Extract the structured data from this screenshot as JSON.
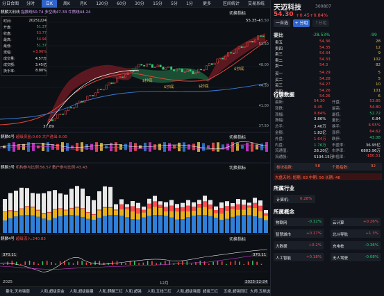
{
  "toolbar": {
    "items": [
      "分日合图",
      "分时",
      "日K",
      "周K",
      "月K",
      "120分",
      "60分",
      "30分",
      "15分",
      "5分",
      "1分",
      "更多",
      "区间统计",
      "交易系统"
    ],
    "active": 2
  },
  "chart1": {
    "legend_name": "麒麟大利线",
    "legend_rest": "指数线50.74 多空线47.33 牛熊线44.24",
    "switch": "切换指标",
    "y_labels": [
      "55.50",
      "51.50",
      "48.00",
      "44.50",
      "41.00",
      "37.50"
    ],
    "top_price": "55.35→",
    "low_price": "37.89",
    "marks": [
      "$抄底",
      "$抄底",
      "$抄底",
      "$抄底"
    ],
    "small_marks": [
      "$抄底",
      "$抄底"
    ]
  },
  "info": {
    "rows": [
      [
        "时间:",
        "20251224"
      ],
      [
        "开盘:",
        "51.37"
      ],
      [
        "收盘:",
        "53.77"
      ],
      [
        "最高:",
        "54.94"
      ],
      [
        "最低:",
        "51.37"
      ],
      [
        "涨幅:",
        "+3.96%"
      ],
      [
        "成交量:",
        "4.57万"
      ],
      [
        "成交额:",
        "3.45亿"
      ],
      [
        "换手率:",
        "8.80%"
      ]
    ]
  },
  "chart2": {
    "name": "麒麟6号",
    "legend": "超级资金:0.00 大户进出:0.00",
    "switch": "切换指标"
  },
  "chart3": {
    "name": "麒麟3号",
    "legend": "机构参与比例:56.57 散户参与比例:43.43",
    "switch": "切换指标"
  },
  "chart4": {
    "name": "麒麟4号",
    "legend": "超级流入:240.83",
    "switch": "切换指标",
    "left_val": "370.11",
    "right_val": "370.11"
  },
  "xaxis": {
    "start": "2025",
    "mid": "12月",
    "end": "2025-12-24"
  },
  "bottom_tabs": [
    "量化,天地强弱",
    "人和,超级资金",
    "人和,超级能量",
    "人和,麒麟三红",
    "人和,超强",
    "人和,五线三红",
    "人和,超级强弱",
    "超级三红",
    "五绝,超强同红",
    "大师,五绝选股"
  ],
  "stock": {
    "name": "天迈科技",
    "code": "300807",
    "price": "54.30",
    "change": "+0.45",
    "pct": "+0.84%",
    "btn_auto": "一自选",
    "btn_group": "+ 分组",
    "btn_third": "↑分组"
  },
  "orderbook": {
    "title": "委比",
    "ratio": "-28.53%",
    "diff": "-99",
    "asks": [
      [
        "卖五",
        "54.36",
        "28"
      ],
      [
        "卖四",
        "54.35",
        "12"
      ],
      [
        "卖三",
        "54.34",
        "9"
      ],
      [
        "卖二",
        "54.33",
        "102"
      ],
      [
        "卖一",
        "54.3",
        "82"
      ]
    ],
    "bids": [
      [
        "买一",
        "54.29",
        "5"
      ],
      [
        "买二",
        "54.28",
        "5"
      ],
      [
        "买三",
        "54.27",
        "10"
      ],
      [
        "买四",
        "54.26",
        "101"
      ],
      [
        "买五",
        "54.26",
        "6"
      ]
    ]
  },
  "quotes": {
    "title": "行情数据",
    "rows": [
      [
        "最新:",
        "54.30",
        "开盘:",
        "53.85"
      ],
      [
        "涨跌:",
        "0.45",
        "最高:",
        "54.80"
      ],
      [
        "涨幅:",
        "0.84%",
        "最低:",
        "52.72"
      ],
      [
        "振幅:",
        "3.86%",
        "量比:",
        "0.84"
      ],
      [
        "总手:",
        "3.40万",
        "换手:",
        "6.55%"
      ],
      [
        "金额:",
        "1.82亿",
        "涨停:",
        "64.62"
      ],
      [
        "外盘:",
        "1.64万",
        "跌停:",
        "43.08"
      ],
      [
        "内盘:",
        "1.76万",
        "市盈率:",
        "36.95亿"
      ],
      [
        "流通值:",
        "28.20亿",
        "市净率:",
        "6803.96万"
      ],
      [
        "流通股:",
        "5194.15万",
        "市值率:",
        "-180.51"
      ]
    ]
  },
  "badges": {
    "b1_label": "板块指数:",
    "b1_val": "58",
    "b2_label": "个股指数:",
    "b2_val": "92",
    "line": "大盘天时: 短期: 63 中期: 56 长期: 46"
  },
  "industry": {
    "title": "所属行业",
    "items": [
      [
        "计算机-",
        "0.28%"
      ]
    ]
  },
  "concepts": {
    "title": "所属概念",
    "items": [
      [
        "物联网",
        "-0.12%"
      ],
      [
        "云计算",
        "+0.26%"
      ],
      [
        "智慧城市",
        "+0.17%"
      ],
      [
        "北斗导航",
        "+1.3%"
      ],
      [
        "大数据",
        "+0.2%"
      ],
      [
        "充电桩",
        "-0.36%"
      ],
      [
        "人工智能",
        "+0.18%"
      ],
      [
        "无人驾驶",
        "-0.08%"
      ]
    ]
  },
  "colors": {
    "up": "#ff4d4d",
    "down": "#2ecc71",
    "accent": "#2f63c9",
    "bg": "#0c0f14"
  }
}
